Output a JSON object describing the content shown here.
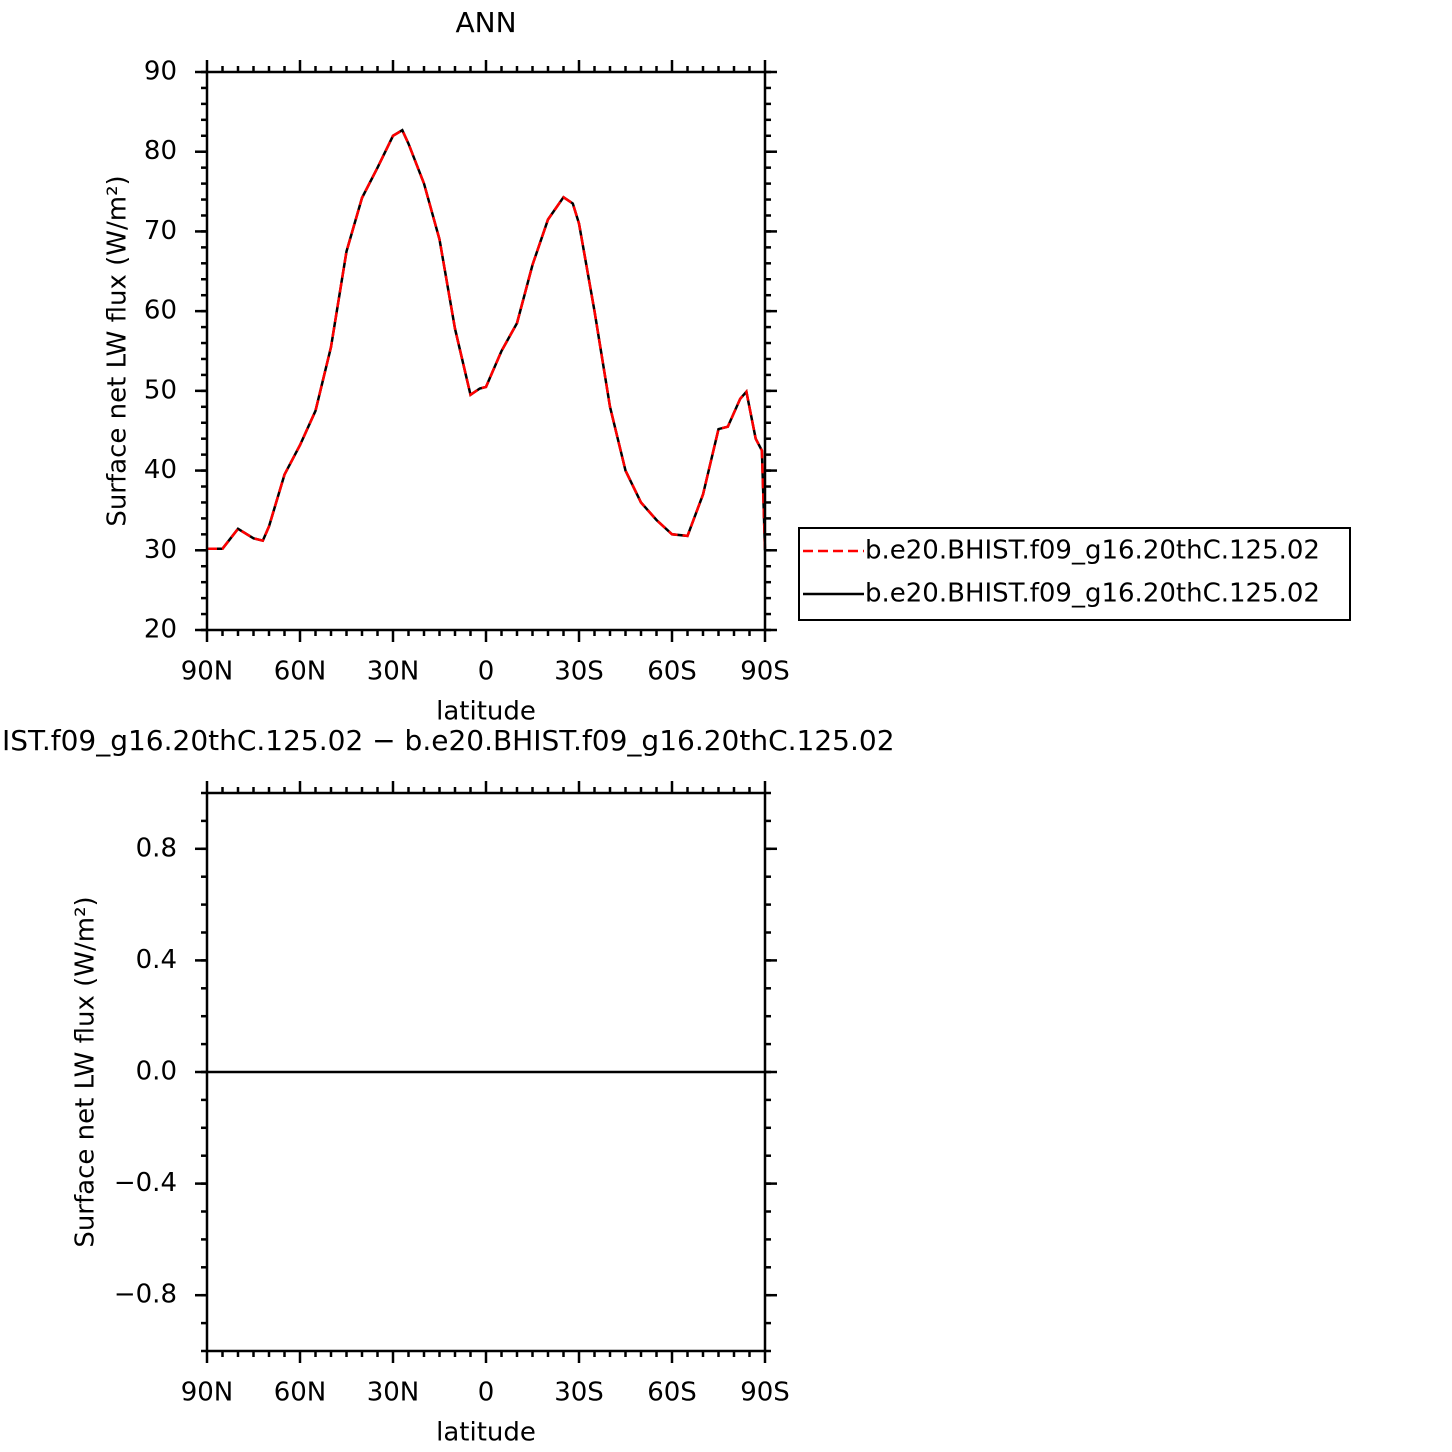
{
  "chart_data": [
    {
      "type": "line",
      "title": "ANN",
      "xlabel": "latitude",
      "ylabel": "Surface net LW flux (W/m²)",
      "xlim": [
        90,
        -90
      ],
      "ylim": [
        20,
        90
      ],
      "xticks": [
        {
          "value": 90,
          "label": "90N"
        },
        {
          "value": 60,
          "label": "60N"
        },
        {
          "value": 30,
          "label": "30N"
        },
        0,
        {
          "value": -30,
          "label": "30S"
        },
        {
          "value": -60,
          "label": "60S"
        },
        {
          "value": -90,
          "label": "90S"
        }
      ],
      "yticks": [
        20,
        30,
        40,
        50,
        60,
        70,
        80,
        90
      ],
      "x": [
        90,
        85,
        80,
        75,
        72,
        70,
        65,
        60,
        55,
        50,
        45,
        40,
        35,
        30,
        27,
        25,
        20,
        15,
        10,
        5,
        2,
        0,
        -5,
        -10,
        -15,
        -20,
        -25,
        -28,
        -30,
        -35,
        -40,
        -45,
        -50,
        -55,
        -60,
        -65,
        -70,
        -75,
        -78,
        -82,
        -84,
        -87,
        -89,
        -90
      ],
      "series": [
        {
          "name": "b.e20.BHIST.f09_g16.20thC.125.02",
          "color": "#ff0000",
          "dashed": true,
          "values": [
            30.2,
            30.2,
            32.7,
            31.5,
            31.2,
            33.0,
            39.5,
            43.2,
            47.5,
            55.5,
            67.5,
            74.2,
            78.0,
            82.0,
            82.7,
            81.0,
            76.0,
            69.0,
            57.8,
            49.5,
            50.3,
            50.5,
            55.0,
            58.5,
            65.8,
            71.5,
            74.3,
            73.5,
            71.0,
            60.0,
            48.0,
            40.0,
            36.0,
            33.8,
            32.0,
            31.8,
            37.0,
            45.2,
            45.5,
            49.0,
            49.9,
            44.0,
            42.5,
            30.0
          ]
        },
        {
          "name": "b.e20.BHIST.f09_g16.20thC.125.02",
          "color": "#000000",
          "dashed": false,
          "values": [
            30.2,
            30.2,
            32.7,
            31.5,
            31.2,
            33.0,
            39.5,
            43.2,
            47.5,
            55.5,
            67.5,
            74.2,
            78.0,
            82.0,
            82.7,
            81.0,
            76.0,
            69.0,
            57.8,
            49.5,
            50.3,
            50.5,
            55.0,
            58.5,
            65.8,
            71.5,
            74.3,
            73.5,
            71.0,
            60.0,
            48.0,
            40.0,
            36.0,
            33.8,
            32.0,
            31.8,
            37.0,
            45.2,
            45.5,
            49.0,
            49.9,
            44.0,
            42.5,
            30.0
          ]
        }
      ]
    },
    {
      "type": "line",
      "title": "IST.f09_g16.20thC.125.02 − b.e20.BHIST.f09_g16.20thC.125.02",
      "xlabel": "latitude",
      "ylabel": "Surface net LW flux (W/m²)",
      "xlim": [
        90,
        -90
      ],
      "ylim": [
        -1,
        1
      ],
      "xticks": [
        {
          "value": 90,
          "label": "90N"
        },
        {
          "value": 60,
          "label": "60N"
        },
        {
          "value": 30,
          "label": "30N"
        },
        0,
        {
          "value": -30,
          "label": "30S"
        },
        {
          "value": -60,
          "label": "60S"
        },
        {
          "value": -90,
          "label": "90S"
        }
      ],
      "yticks": [
        {
          "value": -0.8,
          "label": "−0.8"
        },
        {
          "value": -0.4,
          "label": "−0.4"
        },
        {
          "value": 0,
          "label": "0.0"
        },
        0.4,
        0.8
      ],
      "x": [
        90,
        -90
      ],
      "series": [
        {
          "color": "#000000",
          "dashed": false,
          "values": [
            0,
            0
          ]
        }
      ]
    }
  ]
}
